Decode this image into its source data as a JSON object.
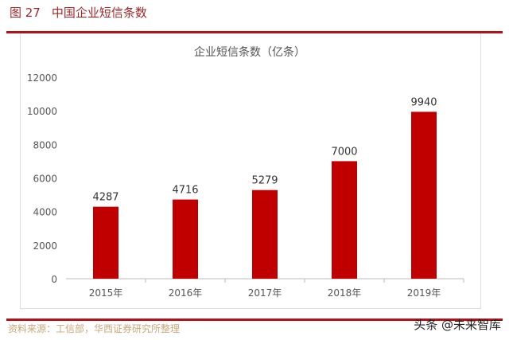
{
  "header": {
    "figure_no": "图 27",
    "title": "中国企业短信条数"
  },
  "footer": {
    "source": "资料来源：工信部，华西证券研究所整理",
    "watermark": "头条 @未来智库"
  },
  "colors": {
    "bar": "#c00000",
    "accent": "#b31218"
  },
  "chart_data": {
    "type": "bar",
    "title": "企业短信条数（亿条）",
    "categories": [
      "2015年",
      "2016年",
      "2017年",
      "2018年",
      "2019年"
    ],
    "values": [
      4287,
      4716,
      5279,
      7000,
      9940
    ],
    "yticks": [
      0,
      2000,
      4000,
      6000,
      8000,
      10000,
      12000
    ],
    "ylim": [
      0,
      12000
    ],
    "grid": false,
    "data_labels": true
  }
}
